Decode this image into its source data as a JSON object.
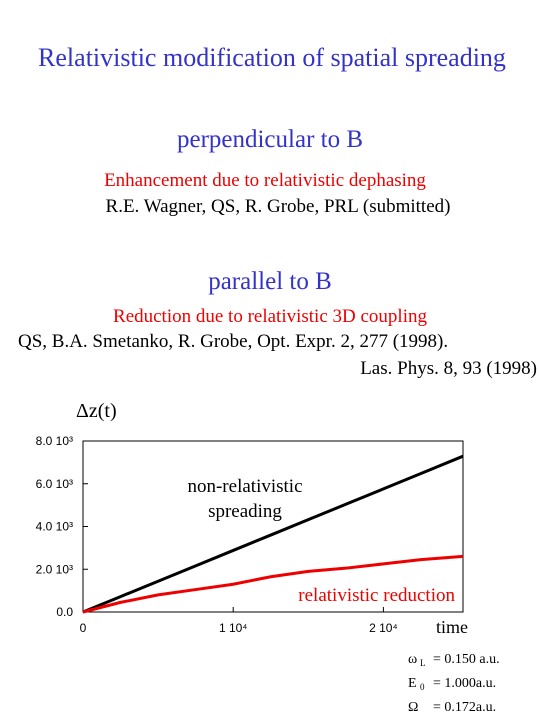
{
  "slide": {
    "title": "Relativistic modification of spatial spreading",
    "perpendicular": {
      "heading": "perpendicular to B",
      "note": "Enhancement due to relativistic dephasing",
      "reference": "R.E. Wagner, QS, R. Grobe, PRL (submitted)"
    },
    "parallel": {
      "heading": "parallel to B",
      "note": "Reduction due to relativistic 3D coupling",
      "references": [
        "QS, B.A.  Smetanko, R. Grobe, Opt. Expr. 2, 277 (1998).",
        "Las. Phys. 8, 93  (1998)"
      ]
    },
    "parameters": [
      {
        "symbol": "ω",
        "sub": "L",
        "value": "= 0.150 a.u."
      },
      {
        "symbol": "E",
        "sub": "0",
        "value": "= 1.000a.u."
      },
      {
        "symbol": "Ω",
        "sub": "",
        "value": "= 0.172a.u."
      }
    ]
  },
  "chart_data": {
    "type": "line",
    "y_label": "Δz(t)",
    "x_label": "time",
    "xlim": [
      0,
      25300
    ],
    "ylim": [
      0,
      8000
    ],
    "xticks": [
      0,
      {
        "value": 10000,
        "label": "1 10⁴"
      },
      {
        "value": 20000,
        "label": "2 10⁴"
      }
    ],
    "yticks": [
      {
        "value": 0,
        "label": "0.0"
      },
      {
        "value": 2000,
        "label": "2.0 10³"
      },
      {
        "value": 4000,
        "label": "4.0 10³"
      },
      {
        "value": 6000,
        "label": "6.0 10³"
      },
      {
        "value": 8000,
        "label": "8.0 10³"
      }
    ],
    "x": [
      0,
      2500,
      5000,
      7500,
      10000,
      12500,
      15000,
      17500,
      20000,
      22500,
      25300
    ],
    "series": [
      {
        "name": "non-relativistic spreading",
        "color": "#000000",
        "values": [
          0,
          720,
          1440,
          2160,
          2880,
          3600,
          4320,
          5040,
          5760,
          6480,
          7290
        ]
      },
      {
        "name": "relativistic reduction",
        "color": "#ee0000",
        "values": [
          0,
          450,
          800,
          1050,
          1300,
          1650,
          1900,
          2050,
          2250,
          2450,
          2600
        ]
      }
    ]
  }
}
